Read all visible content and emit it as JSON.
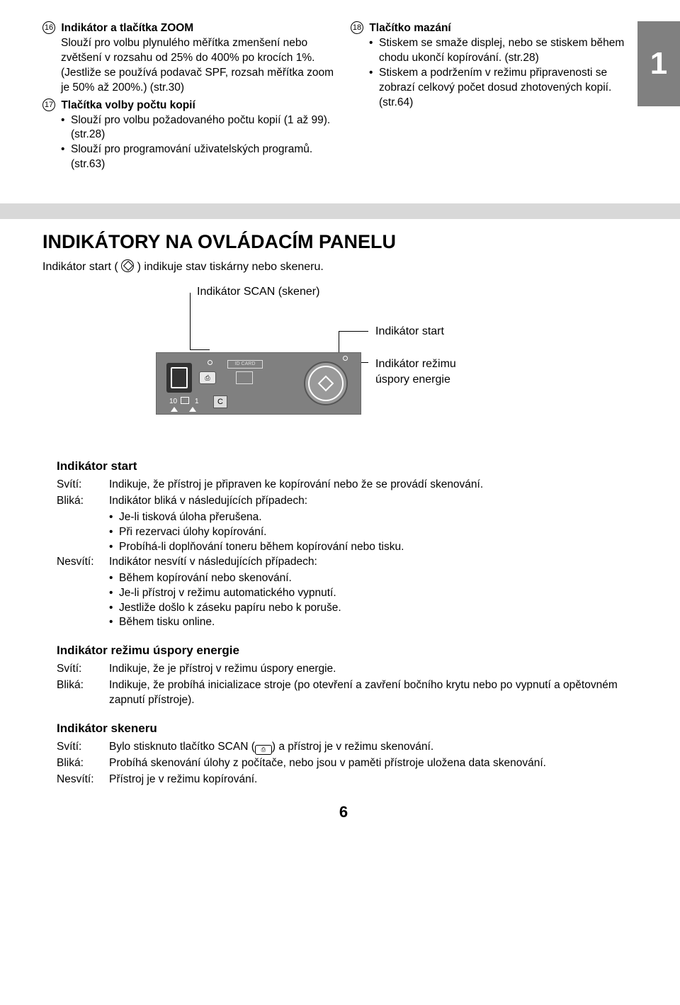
{
  "chapter_number": "1",
  "page_number": "6",
  "top": {
    "item16": {
      "num": "16",
      "title": "Indikátor a tlačítka ZOOM",
      "body": "Slouží pro volbu plynulého měřítka zmenšení nebo zvětšení v rozsahu od 25% do 400% po krocích 1%. (Jestliže se používá podavač SPF, rozsah měřítka zoom je 50% až 200%.) (str.30)"
    },
    "item17": {
      "num": "17",
      "title": "Tlačítka volby počtu kopií",
      "bullets": [
        "Slouží pro volbu požadovaného počtu kopií (1 až 99). (str.28)",
        "Slouží pro programování uživatelských programů. (str.63)"
      ]
    },
    "item18": {
      "num": "18",
      "title": "Tlačítko mazání",
      "bullets": [
        "Stiskem se smaže displej, nebo se stiskem během chodu ukončí kopírování. (str.28)",
        "Stiskem a podržením v režimu připravenosti se zobrazí celkový počet dosud zhotovených kopií. (str.64)"
      ]
    }
  },
  "section": {
    "title": "INDIKÁTORY NA OVLÁDACÍM PANELU",
    "subtitle_pre": "Indikátor start (",
    "subtitle_post": ") indikuje stav tiskárny nebo skeneru."
  },
  "diagram": {
    "label_scan": "Indikátor SCAN (skener)",
    "label_start": "Indikátor start",
    "label_energy_l1": "Indikátor režimu",
    "label_energy_l2": "úspory energie",
    "idcard": "ID CARD",
    "num10": "10",
    "num1": "1",
    "c": "C",
    "scan_glyph": "⎙"
  },
  "ind_start": {
    "title": "Indikátor start",
    "sviti_label": "Svítí:",
    "sviti_text": "Indikuje, že přístroj je připraven ke kopírování nebo že se provádí skenování.",
    "blika_label": "Bliká:",
    "blika_text": "Indikátor bliká v následujících případech:",
    "blika_bullets": [
      "Je-li tisková úloha přerušena.",
      "Při rezervaci úlohy kopírování.",
      "Probíhá-li doplňování toneru během kopírování nebo tisku."
    ],
    "nesviti_label": "Nesvítí:",
    "nesviti_text": "Indikátor nesvítí v následujících případech:",
    "nesviti_bullets": [
      "Během kopírování nebo skenování.",
      "Je-li přístroj v režimu automatického vypnutí.",
      "Jestliže došlo k záseku papíru nebo k poruše.",
      "Během tisku online."
    ]
  },
  "ind_energy": {
    "title": "Indikátor režimu úspory energie",
    "sviti_label": "Svítí:",
    "sviti_text": "Indikuje, že je přístroj v režimu úspory energie.",
    "blika_label": "Bliká:",
    "blika_text": "Indikuje, že probíhá inicializace stroje (po otevření a zavření bočního krytu nebo po vypnutí a opětovném zapnutí přístroje)."
  },
  "ind_scanner": {
    "title": "Indikátor skeneru",
    "sviti_label": "Svítí:",
    "sviti_text_pre": "Bylo stisknuto tlačítko SCAN (",
    "sviti_text_post": ") a přístroj je v režimu skenování.",
    "blika_label": "Bliká:",
    "blika_text": "Probíhá skenování úlohy z počítače, nebo jsou v paměti přístroje uložena data skenování.",
    "nesviti_label": "Nesvítí:",
    "nesviti_text": "Přístroj je v režimu kopírování."
  }
}
